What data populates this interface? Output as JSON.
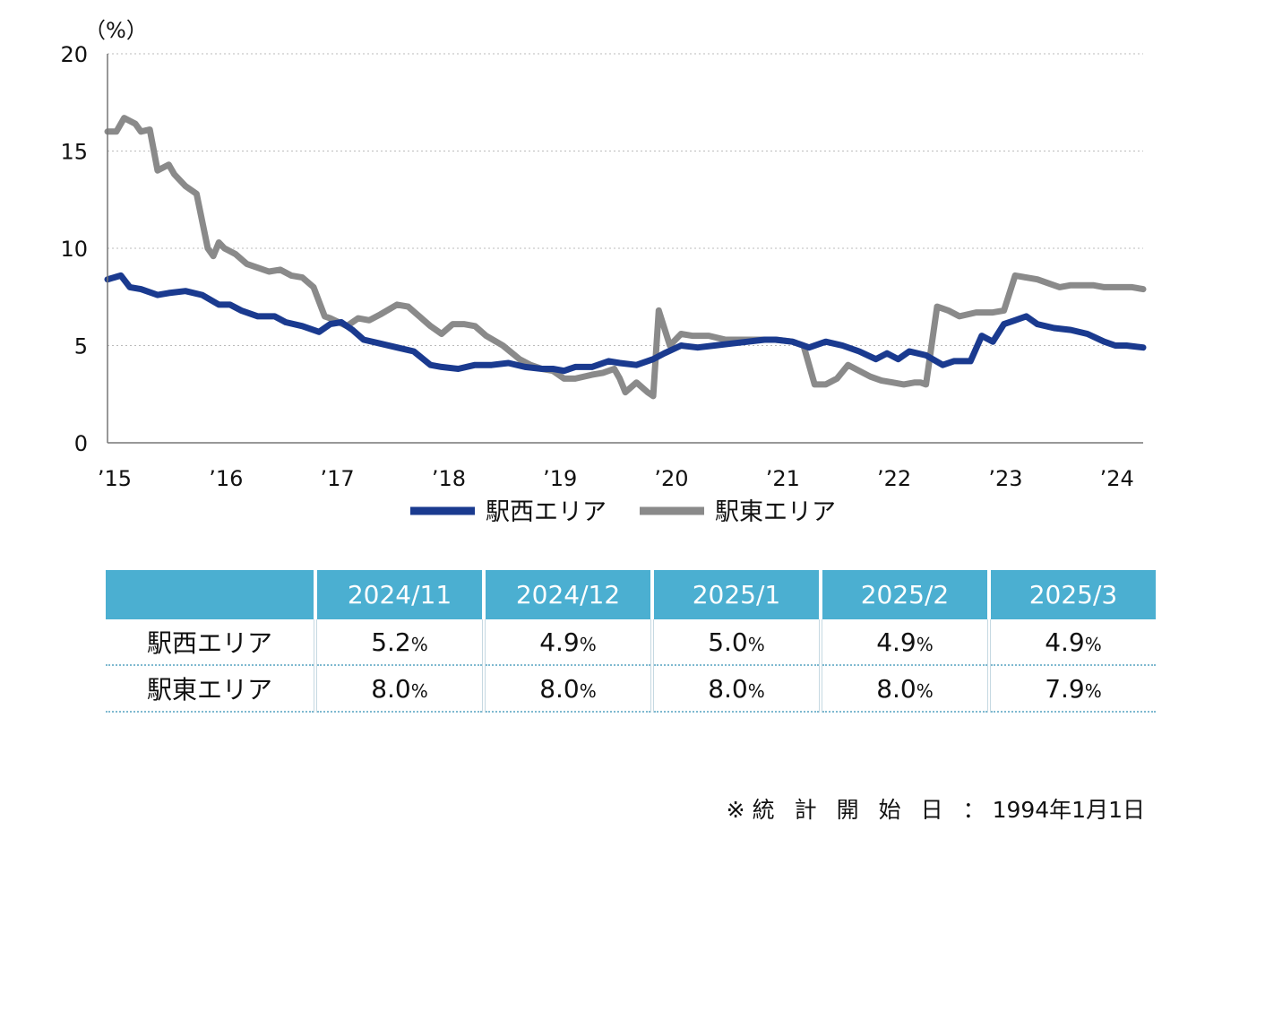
{
  "chart_data": {
    "type": "line",
    "y_unit": "（%）",
    "ylim": [
      0,
      20
    ],
    "yticks": [
      "0",
      "5",
      "10",
      "15",
      "20"
    ],
    "xlim": [
      2015,
      2024.3
    ],
    "x_tick_labels": [
      {
        "x": 2015,
        "label": "’15"
      },
      {
        "x": 2016,
        "label": "’16"
      },
      {
        "x": 2017,
        "label": "’17"
      },
      {
        "x": 2018,
        "label": "’18"
      },
      {
        "x": 2019,
        "label": "’19"
      },
      {
        "x": 2020,
        "label": "’20"
      },
      {
        "x": 2021,
        "label": "’21"
      },
      {
        "x": 2022,
        "label": "’22"
      },
      {
        "x": 2023,
        "label": "’23"
      },
      {
        "x": 2024,
        "label": "’24"
      }
    ],
    "grid": "horizontal-dotted",
    "series": [
      {
        "name": "駅西エリア",
        "color": "#1a3a8f",
        "x": [
          2015.0,
          2015.12,
          2015.2,
          2015.3,
          2015.45,
          2015.55,
          2015.7,
          2015.85,
          2016.0,
          2016.1,
          2016.2,
          2016.35,
          2016.5,
          2016.6,
          2016.75,
          2016.9,
          2017.0,
          2017.1,
          2017.2,
          2017.3,
          2017.45,
          2017.6,
          2017.75,
          2017.9,
          2018.0,
          2018.15,
          2018.3,
          2018.45,
          2018.6,
          2018.75,
          2018.9,
          2019.0,
          2019.1,
          2019.2,
          2019.35,
          2019.5,
          2019.6,
          2019.75,
          2019.9,
          2020.0,
          2020.15,
          2020.3,
          2020.45,
          2020.6,
          2020.75,
          2020.9,
          2021.0,
          2021.15,
          2021.3,
          2021.45,
          2021.6,
          2021.75,
          2021.9,
          2022.0,
          2022.1,
          2022.2,
          2022.35,
          2022.5,
          2022.6,
          2022.75,
          2022.85,
          2022.95,
          2023.05,
          2023.15,
          2023.25,
          2023.35,
          2023.5,
          2023.65,
          2023.8,
          2023.95,
          2024.05,
          2024.15,
          2024.3
        ],
        "values": [
          8.4,
          8.6,
          8.0,
          7.9,
          7.6,
          7.7,
          7.8,
          7.6,
          7.1,
          7.1,
          6.8,
          6.5,
          6.5,
          6.2,
          6.0,
          5.7,
          6.1,
          6.2,
          5.8,
          5.3,
          5.1,
          4.9,
          4.7,
          4.0,
          3.9,
          3.8,
          4.0,
          4.0,
          4.1,
          3.9,
          3.8,
          3.8,
          3.7,
          3.9,
          3.9,
          4.2,
          4.1,
          4.0,
          4.3,
          4.6,
          5.0,
          4.9,
          5.0,
          5.1,
          5.2,
          5.3,
          5.3,
          5.2,
          4.9,
          5.2,
          5.0,
          4.7,
          4.3,
          4.6,
          4.3,
          4.7,
          4.5,
          4.0,
          4.2,
          4.2,
          5.5,
          5.2,
          6.1,
          6.3,
          6.5,
          6.1,
          5.9,
          5.8,
          5.6,
          5.2,
          5.0,
          5.0,
          4.9
        ]
      },
      {
        "name": "駅東エリア",
        "color": "#8a8a8a",
        "x": [
          2015.0,
          2015.08,
          2015.15,
          2015.25,
          2015.3,
          2015.38,
          2015.45,
          2015.55,
          2015.6,
          2015.7,
          2015.8,
          2015.9,
          2015.95,
          2016.0,
          2016.05,
          2016.15,
          2016.25,
          2016.35,
          2016.45,
          2016.55,
          2016.65,
          2016.75,
          2016.85,
          2016.95,
          2017.0,
          2017.15,
          2017.25,
          2017.35,
          2017.45,
          2017.6,
          2017.7,
          2017.8,
          2017.9,
          2018.0,
          2018.1,
          2018.2,
          2018.3,
          2018.4,
          2018.55,
          2018.7,
          2018.8,
          2018.9,
          2019.0,
          2019.1,
          2019.2,
          2019.35,
          2019.45,
          2019.55,
          2019.6,
          2019.65,
          2019.75,
          2019.85,
          2019.9,
          2019.95,
          2020.05,
          2020.15,
          2020.25,
          2020.4,
          2020.55,
          2020.7,
          2020.85,
          2021.0,
          2021.15,
          2021.25,
          2021.35,
          2021.45,
          2021.55,
          2021.65,
          2021.75,
          2021.85,
          2021.95,
          2022.05,
          2022.15,
          2022.25,
          2022.3,
          2022.35,
          2022.45,
          2022.55,
          2022.65,
          2022.8,
          2022.95,
          2023.05,
          2023.15,
          2023.25,
          2023.35,
          2023.45,
          2023.55,
          2023.65,
          2023.75,
          2023.85,
          2023.95,
          2024.1,
          2024.2,
          2024.3
        ],
        "values": [
          16.0,
          16.0,
          16.7,
          16.4,
          16.0,
          16.1,
          14.0,
          14.3,
          13.8,
          13.2,
          12.8,
          10.0,
          9.6,
          10.3,
          10.0,
          9.7,
          9.2,
          9.0,
          8.8,
          8.9,
          8.6,
          8.5,
          8.0,
          6.5,
          6.4,
          6.0,
          6.4,
          6.3,
          6.6,
          7.1,
          7.0,
          6.5,
          6.0,
          5.6,
          6.1,
          6.1,
          6.0,
          5.5,
          5.0,
          4.3,
          4.0,
          3.8,
          3.7,
          3.3,
          3.3,
          3.5,
          3.6,
          3.8,
          3.3,
          2.6,
          3.1,
          2.6,
          2.4,
          6.8,
          5.0,
          5.6,
          5.5,
          5.5,
          5.3,
          5.3,
          5.3,
          5.3,
          5.2,
          5.0,
          3.0,
          3.0,
          3.3,
          4.0,
          3.7,
          3.4,
          3.2,
          3.1,
          3.0,
          3.1,
          3.1,
          3.0,
          7.0,
          6.8,
          6.5,
          6.7,
          6.7,
          6.8,
          8.6,
          8.5,
          8.4,
          8.2,
          8.0,
          8.1,
          8.1,
          8.1,
          8.0,
          8.0,
          8.0,
          7.9
        ]
      }
    ]
  },
  "table": {
    "headers": [
      "",
      "2024/11",
      "2024/12",
      "2025/1",
      "2025/2",
      "2025/3"
    ],
    "unit": "%",
    "rows": [
      {
        "label": "駅西エリア",
        "values": [
          "5.2",
          "4.9",
          "5.0",
          "4.9",
          "4.9"
        ]
      },
      {
        "label": "駅東エリア",
        "values": [
          "8.0",
          "8.0",
          "8.0",
          "8.0",
          "7.9"
        ]
      }
    ]
  },
  "note": {
    "mark": "※",
    "label": "統計開始日",
    "colon": "：",
    "date": "1994年1月1日"
  }
}
